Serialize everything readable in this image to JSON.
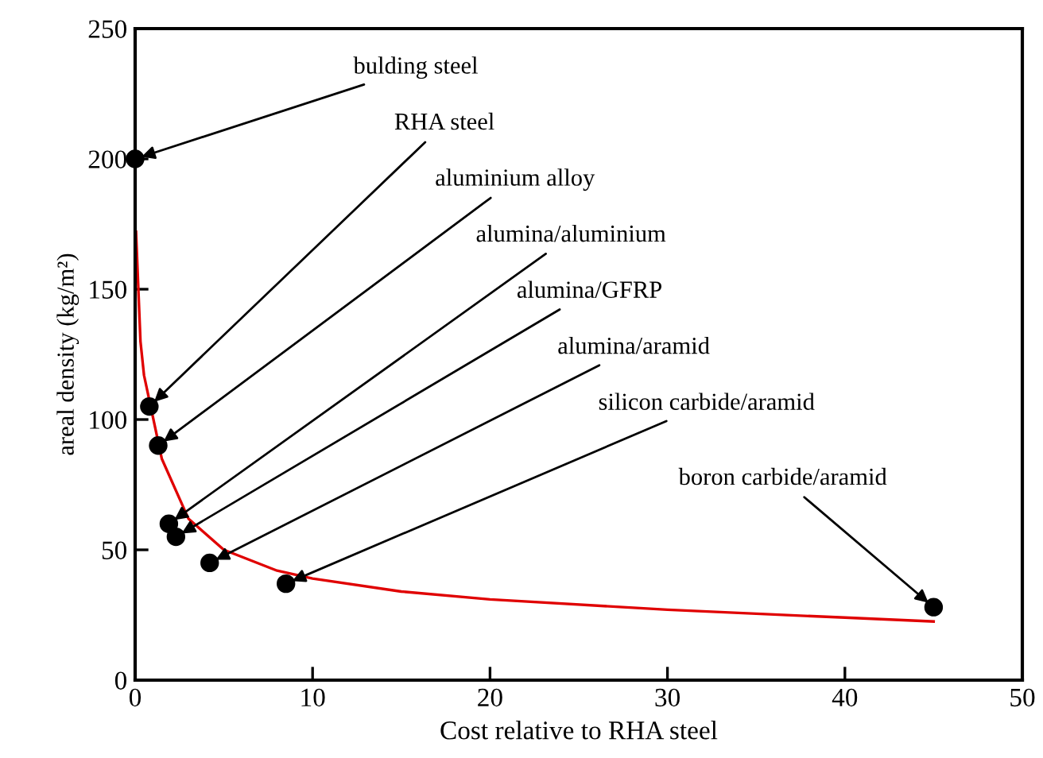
{
  "chart_data": {
    "type": "scatter",
    "xlabel": "Cost relative to RHA steel",
    "ylabel": "areal density (kg/m²)",
    "xlim": [
      0,
      50
    ],
    "xticks": [
      0,
      10,
      20,
      30,
      40,
      50
    ],
    "ylim": [
      0,
      250
    ],
    "yticks": [
      0,
      50,
      100,
      150,
      200,
      250
    ],
    "grid": false,
    "legend": false,
    "series": [
      {
        "marker": "circle",
        "color": "#000000",
        "x": [
          0,
          0.8,
          1.3,
          1.9,
          2.3,
          4.2,
          8.5,
          45
        ],
        "values": [
          200,
          105,
          90,
          60,
          55,
          45,
          37,
          28
        ]
      },
      {
        "type": "line",
        "marker": "none",
        "color": "#e00000",
        "x": [
          0.05,
          0.3,
          0.5,
          1.5,
          3,
          5,
          8,
          10,
          15,
          20,
          30,
          40,
          45
        ],
        "values": [
          172,
          130,
          117,
          85,
          62,
          50,
          42,
          39,
          34,
          31,
          27,
          24,
          22.5
        ]
      }
    ],
    "annotations": [
      {
        "text": "bulding steel",
        "x": 0,
        "y": 200
      },
      {
        "text": "RHA steel",
        "x": 0.8,
        "y": 105
      },
      {
        "text": "aluminium alloy",
        "x": 1.3,
        "y": 90
      },
      {
        "text": "alumina/aluminium",
        "x": 1.9,
        "y": 60
      },
      {
        "text": "alumina/GFRP",
        "x": 2.3,
        "y": 55
      },
      {
        "text": "alumina/aramid",
        "x": 4.2,
        "y": 45
      },
      {
        "text": "silicon carbide/aramid",
        "x": 8.5,
        "y": 37
      },
      {
        "text": "boron carbide/aramid",
        "x": 45,
        "y": 28
      }
    ]
  }
}
